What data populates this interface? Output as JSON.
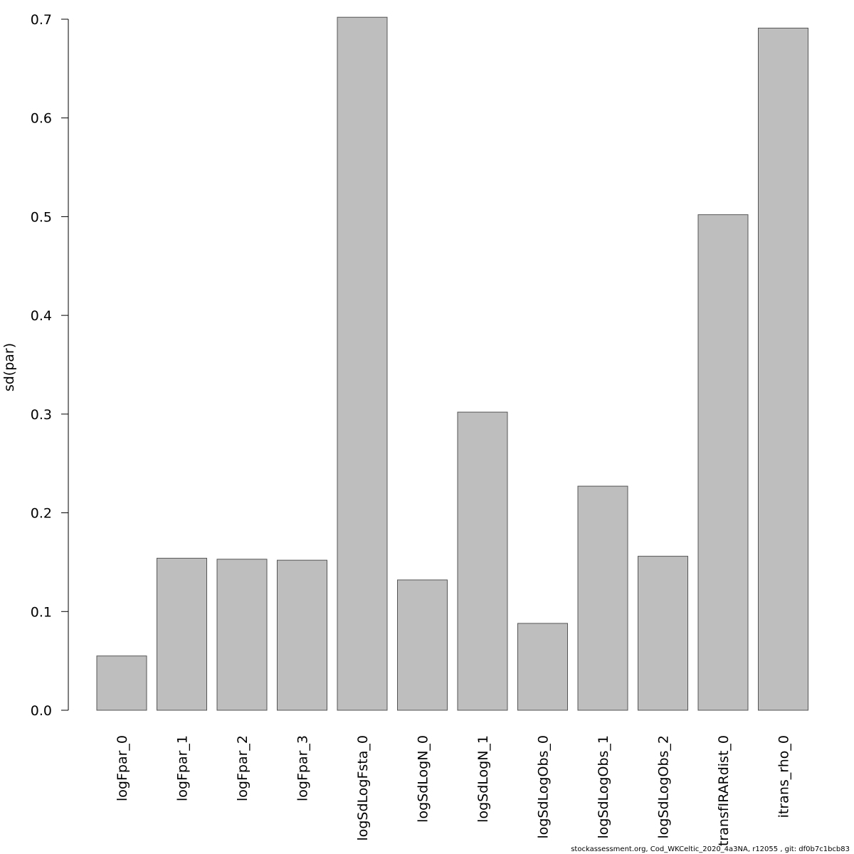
{
  "chart_data": {
    "type": "bar",
    "categories": [
      "logFpar_0",
      "logFpar_1",
      "logFpar_2",
      "logFpar_3",
      "logSdLogFsta_0",
      "logSdLogN_0",
      "logSdLogN_1",
      "logSdLogObs_0",
      "logSdLogObs_1",
      "logSdLogObs_2",
      "transfIRARdist_0",
      "itrans_rho_0"
    ],
    "values": [
      0.055,
      0.154,
      0.153,
      0.152,
      0.702,
      0.132,
      0.302,
      0.088,
      0.227,
      0.156,
      0.502,
      0.691
    ],
    "ylabel": "sd(par)",
    "ylim": [
      0,
      0.7
    ],
    "yticks": [
      "0.0",
      "0.1",
      "0.2",
      "0.3",
      "0.4",
      "0.5",
      "0.6",
      "0.7"
    ],
    "grid": false,
    "bar_color": "#bebebe",
    "bar_stroke": "#555555"
  },
  "footer": "stockassessment.org, Cod_WKCeltic_2020_4a3NA, r12055 , git: df0b7c1bcb83"
}
